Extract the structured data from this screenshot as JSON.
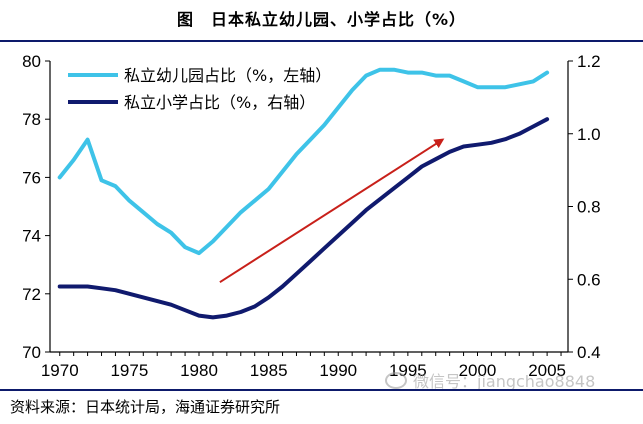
{
  "title": "图　日本私立幼儿园、小学占比（%）",
  "source": "资料来源：日本统计局，海通证券研究所",
  "watermark": "微信号：jiangchao8848",
  "chart_data": {
    "type": "line",
    "title": "图　日本私立幼儿园、小学占比（%）",
    "x": [
      1970,
      1971,
      1972,
      1973,
      1974,
      1975,
      1976,
      1977,
      1978,
      1979,
      1980,
      1981,
      1982,
      1983,
      1984,
      1985,
      1986,
      1987,
      1988,
      1989,
      1990,
      1991,
      1992,
      1993,
      1994,
      1995,
      1996,
      1997,
      1998,
      1999,
      2000,
      2001,
      2002,
      2003,
      2004,
      2005
    ],
    "xlim": [
      1969.3,
      2006.5
    ],
    "xticks": [
      1970,
      1975,
      1980,
      1985,
      1990,
      1995,
      2000,
      2005
    ],
    "y_left": {
      "ylim": [
        70,
        80
      ],
      "ticks": [
        "70",
        "72",
        "74",
        "76",
        "78",
        "80"
      ]
    },
    "y_right": {
      "ylim": [
        0.4,
        1.2
      ],
      "ticks": [
        "0.4",
        "0.6",
        "0.8",
        "1.0",
        "1.2"
      ]
    },
    "series": [
      {
        "name": "私立幼儿园占比（%，左轴）",
        "axis": "left",
        "color": "#3ec3e8",
        "values": [
          76.0,
          76.6,
          77.3,
          75.9,
          75.7,
          75.2,
          74.8,
          74.4,
          74.1,
          73.6,
          73.4,
          73.8,
          74.3,
          74.8,
          75.2,
          75.6,
          76.2,
          76.8,
          77.3,
          77.8,
          78.4,
          79.0,
          79.5,
          79.7,
          79.7,
          79.6,
          79.6,
          79.5,
          79.5,
          79.3,
          79.1,
          79.1,
          79.1,
          79.2,
          79.3,
          79.6
        ]
      },
      {
        "name": "私立小学占比（%，右轴）",
        "axis": "right",
        "color": "#101a6e",
        "values": [
          0.58,
          0.58,
          0.58,
          0.575,
          0.57,
          0.56,
          0.55,
          0.54,
          0.53,
          0.515,
          0.5,
          0.495,
          0.5,
          0.51,
          0.525,
          0.55,
          0.58,
          0.615,
          0.65,
          0.685,
          0.72,
          0.755,
          0.79,
          0.82,
          0.85,
          0.88,
          0.91,
          0.93,
          0.95,
          0.965,
          0.97,
          0.975,
          0.985,
          1.0,
          1.02,
          1.04
        ]
      }
    ],
    "annotations": [
      {
        "type": "arrow",
        "color": "#c8201a",
        "from": [
          1981.5,
          72.4
        ],
        "to": [
          1997.5,
          77.3
        ]
      }
    ]
  }
}
